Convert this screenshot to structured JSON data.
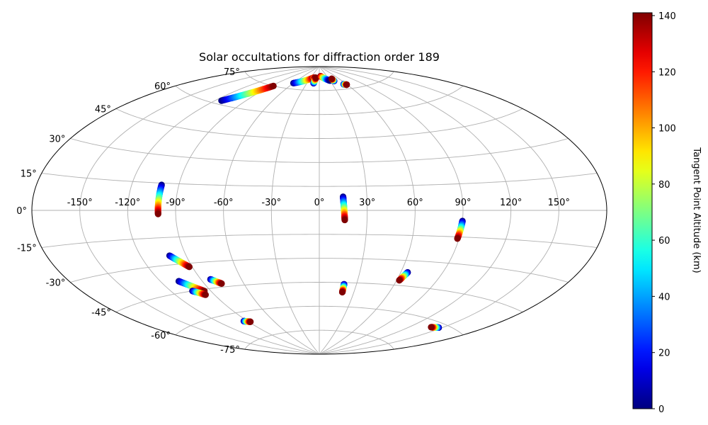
{
  "chart_data": {
    "type": "scatter",
    "projection": "aitoff",
    "title": "Solar occultations for diffraction order 189",
    "xlabel": "",
    "ylabel": "",
    "grid": true,
    "xlim": [
      -180,
      180
    ],
    "ylim": [
      -90,
      90
    ],
    "x_ticks": [
      -150,
      -120,
      -90,
      -60,
      -30,
      0,
      30,
      60,
      90,
      120,
      150
    ],
    "x_tick_labels": [
      "-150°",
      "-120°",
      "-90°",
      "-60°",
      "-30°",
      "0°",
      "30°",
      "60°",
      "90°",
      "120°",
      "150°"
    ],
    "y_ticks": [
      75,
      60,
      45,
      30,
      15,
      0,
      -15,
      -30,
      -45,
      -60,
      -75
    ],
    "y_tick_labels": [
      "75°",
      "60°",
      "45°",
      "30°",
      "15°",
      "0°",
      "-15°",
      "-30°",
      "-45°",
      "-60°",
      "-75°"
    ],
    "colorbar": {
      "label": "Tangent Point Altitude (km)",
      "range": [
        0,
        141
      ],
      "ticks": [
        0,
        20,
        40,
        60,
        80,
        100,
        120,
        140
      ],
      "tick_labels": [
        "0",
        "20",
        "40",
        "60",
        "80",
        "100",
        "120",
        "140"
      ],
      "colormap": "jet"
    },
    "tracks": [
      {
        "lon_start": -114,
        "lat_start": 62,
        "lon_end": -87,
        "lat_end": 75,
        "alt_start": 0,
        "alt_end": 141
      },
      {
        "lon_start": -60,
        "lat_start": 78.5,
        "lon_end": -20,
        "lat_end": 83,
        "alt_start": 0,
        "alt_end": 141
      },
      {
        "lon_start": -20,
        "lat_start": 83,
        "lon_end": -14,
        "lat_end": 83,
        "alt_start": 100,
        "alt_end": 141
      },
      {
        "lon_start": -14,
        "lat_start": 79.5,
        "lon_end": -12,
        "lat_end": 83,
        "alt_start": 0,
        "alt_end": 141
      },
      {
        "lon_start": 5,
        "lat_start": 84,
        "lon_end": 30,
        "lat_end": 81,
        "alt_start": 141,
        "alt_end": 0
      },
      {
        "lon_start": 40,
        "lat_start": 80.5,
        "lon_end": 39,
        "lat_end": 82,
        "alt_start": 0,
        "alt_end": 141
      },
      {
        "lon_start": 54,
        "lat_start": 78,
        "lon_end": 59,
        "lat_end": 77.5,
        "alt_start": 0,
        "alt_end": 141
      },
      {
        "lon_start": -101,
        "lat_start": 14,
        "lon_end": -101,
        "lat_end": -2,
        "alt_start": 0,
        "alt_end": 141
      },
      {
        "lon_start": 15,
        "lat_start": 8.5,
        "lon_end": 16,
        "lat_end": -6,
        "alt_start": 0,
        "alt_end": 141
      },
      {
        "lon_start": 90,
        "lat_start": -6,
        "lon_end": 89,
        "lat_end": -16,
        "alt_start": 0,
        "alt_end": 141
      },
      {
        "lon_start": -101,
        "lat_start": -25,
        "lon_end": -92,
        "lat_end": -32,
        "alt_start": 0,
        "alt_end": 141
      },
      {
        "lon_start": -107,
        "lat_start": -39,
        "lon_end": -95,
        "lat_end": -46,
        "alt_start": 0,
        "alt_end": 141
      },
      {
        "lon_start": -104,
        "lat_start": -45,
        "lon_end": -97,
        "lat_end": -48,
        "alt_start": 0,
        "alt_end": 141
      },
      {
        "lon_start": -83,
        "lat_start": -40,
        "lon_end": -77,
        "lat_end": -43,
        "alt_start": 0,
        "alt_end": 141
      },
      {
        "lon_start": -94,
        "lat_start": -65,
        "lon_end": -88,
        "lat_end": -66,
        "alt_start": 0,
        "alt_end": 141
      },
      {
        "lon_start": 20,
        "lat_start": -46,
        "lon_end": 20,
        "lat_end": -51,
        "alt_start": 0,
        "alt_end": 141
      },
      {
        "lon_start": 65,
        "lat_start": -37,
        "lon_end": 62,
        "lat_end": -42,
        "alt_start": 0,
        "alt_end": 141
      },
      {
        "lon_start": 147,
        "lat_start": -62,
        "lon_end": 140,
        "lat_end": -63,
        "alt_start": 0,
        "alt_end": 141
      }
    ]
  }
}
